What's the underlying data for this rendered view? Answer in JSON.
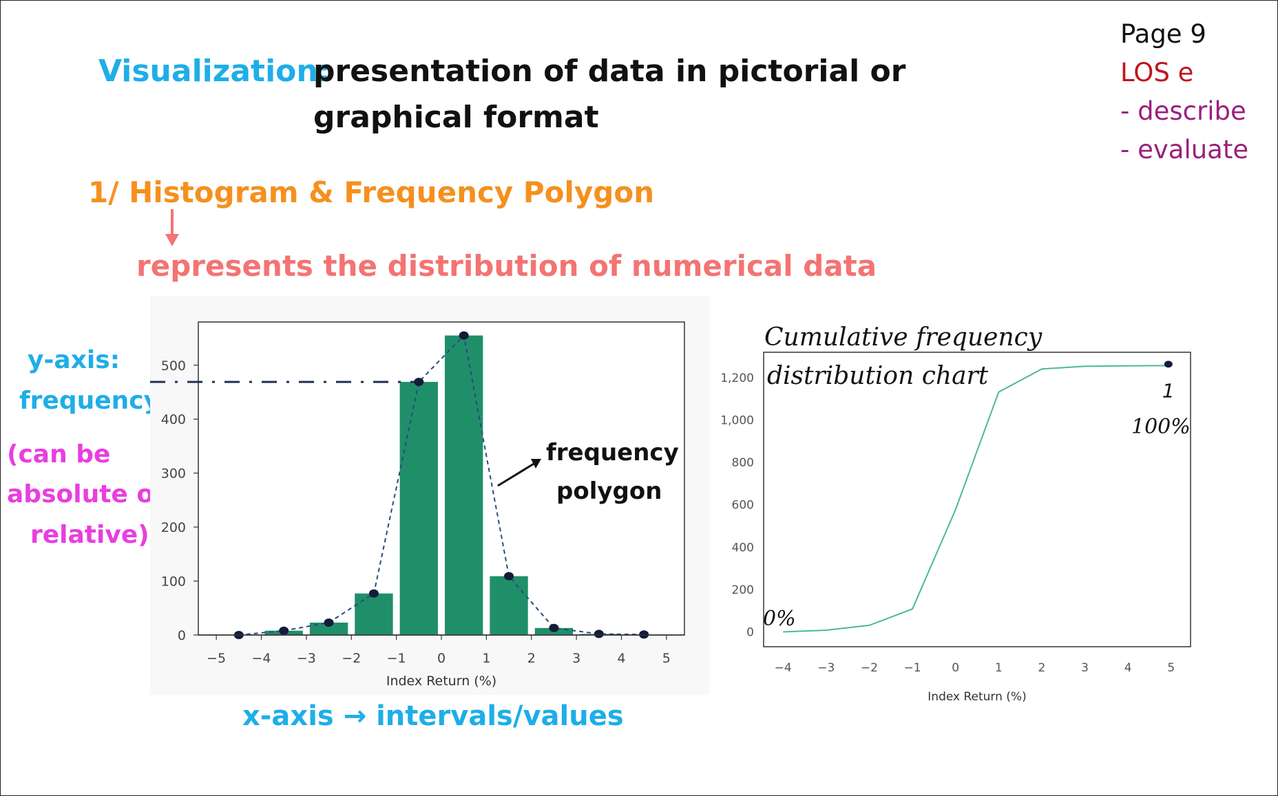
{
  "header": {
    "term": "Visualization:",
    "definition_line1": "presentation of data in pictorial or",
    "definition_line2": "graphical format"
  },
  "side_notes": {
    "page": "Page 9",
    "los": "LOS e",
    "items": [
      "- describe",
      "- evaluate"
    ]
  },
  "section": {
    "title": "1/ Histogram & Frequency Polygon",
    "description": "represents the distribution of numerical data"
  },
  "annotations": {
    "y_axis_line1": "y-axis:",
    "y_axis_line2": "frequency",
    "y_note_line1": "(can be",
    "y_note_line2": "absolute or",
    "y_note_line3": "relative)",
    "x_axis": "x-axis → intervals/values",
    "polygon_line1": "frequency",
    "polygon_line2": "polygon",
    "cum_line1": "Cumulative frequency",
    "cum_line2": "distribution chart",
    "pct_start": "0%",
    "pct_end": "100%",
    "pct_end_mark": "1"
  },
  "colors": {
    "bar": "#1f8f6a",
    "polygon": "#2b4a7a",
    "cum_line": "#4bb89a",
    "accent_blue": "#1eaee8",
    "accent_orange": "#f5901e",
    "accent_pink": "#f47373",
    "accent_magenta": "#e83ee0"
  },
  "chart_data": [
    {
      "type": "bar",
      "categories": [
        "-5 to -4",
        "-4 to -3",
        "-3 to -2",
        "-2 to -1",
        "-1 to 0",
        "0 to 1",
        "1 to 2",
        "2 to 3",
        "3 to 4",
        "4 to 5"
      ],
      "bin_edges": [
        -5,
        -4,
        -3,
        -2,
        -1,
        0,
        1,
        2,
        3,
        4,
        5
      ],
      "values": [
        0,
        8,
        23,
        77,
        469,
        555,
        109,
        13,
        2,
        1
      ],
      "polygon_points": [
        {
          "x": -4.5,
          "y": 0
        },
        {
          "x": -3.5,
          "y": 8
        },
        {
          "x": -2.5,
          "y": 23
        },
        {
          "x": -1.5,
          "y": 77
        },
        {
          "x": -0.5,
          "y": 469
        },
        {
          "x": 0.5,
          "y": 555
        },
        {
          "x": 1.5,
          "y": 109
        },
        {
          "x": 2.5,
          "y": 13
        },
        {
          "x": 3.5,
          "y": 2
        },
        {
          "x": 4.5,
          "y": 1
        }
      ],
      "reference_line_y": 469,
      "xlabel": "Index Return (%)",
      "ylabel": "",
      "xlim": [
        -5.4,
        5.4
      ],
      "ylim": [
        0,
        580
      ],
      "xticks": [
        -5,
        -4,
        -3,
        -2,
        -1,
        0,
        1,
        2,
        3,
        4,
        5
      ],
      "yticks": [
        0,
        100,
        200,
        300,
        400,
        500
      ],
      "ytick_labels": [
        "0",
        "100",
        "200",
        "300",
        "400",
        "500"
      ]
    },
    {
      "type": "line",
      "x": [
        -4,
        -3,
        -2,
        -1,
        0,
        1,
        2,
        3,
        4,
        5
      ],
      "series": [
        {
          "values": [
            0,
            8,
            31,
            108,
            577,
            1132,
            1241,
            1254,
            1256,
            1257
          ]
        }
      ],
      "end_point": {
        "x": 5,
        "y": 1257
      },
      "xlabel": "Index Return (%)",
      "ylabel": "",
      "xlim": [
        -4.45,
        5.45
      ],
      "ylim": [
        -70,
        1320
      ],
      "xticks": [
        -4,
        -3,
        -2,
        -1,
        0,
        1,
        2,
        3,
        4,
        5
      ],
      "yticks": [
        0,
        200,
        400,
        600,
        800,
        1000,
        1200
      ],
      "ytick_labels": [
        "0",
        "200",
        "400",
        "600",
        "800",
        "1,000",
        "1,200"
      ]
    }
  ]
}
